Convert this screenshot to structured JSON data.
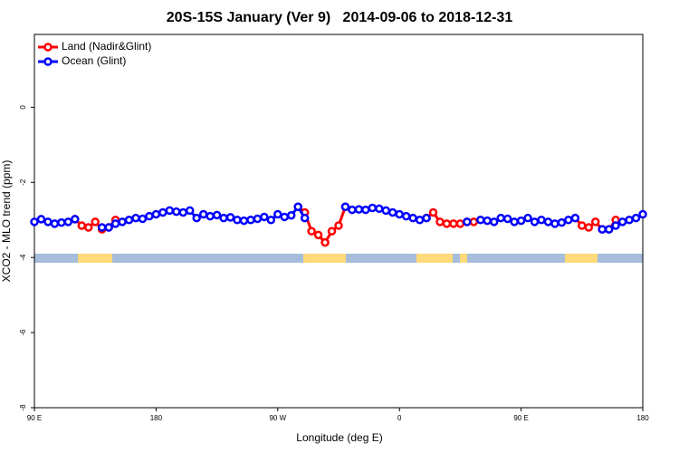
{
  "chart_data": {
    "type": "line",
    "title": "20S-15S January (Ver 9)   2014-09-06 to 2018-12-31",
    "xlabel": "Longitude (deg E)",
    "ylabel": "XCO2 - MLO trend (ppm)",
    "xlim": [
      90,
      540
    ],
    "ylim": [
      -8,
      1.94
    ],
    "xticks": [
      {
        "value": 90,
        "label": "90 E"
      },
      180,
      {
        "value": 270,
        "label": "90 W"
      },
      {
        "value": 360,
        "label": "0"
      },
      {
        "value": 450,
        "label": "90 E"
      },
      {
        "value": 540,
        "label": "180"
      }
    ],
    "yticks": [
      0,
      -2,
      -4,
      -6,
      -8
    ],
    "legend": "upper left",
    "x": [
      90,
      95,
      100,
      105,
      110,
      115,
      120,
      125,
      130,
      135,
      140,
      145,
      150,
      155,
      160,
      165,
      170,
      175,
      180,
      185,
      190,
      195,
      200,
      205,
      210,
      215,
      220,
      225,
      230,
      235,
      240,
      245,
      250,
      255,
      260,
      265,
      270,
      275,
      280,
      285,
      290,
      295,
      300,
      305,
      310,
      315,
      320,
      325,
      330,
      335,
      340,
      345,
      350,
      355,
      360,
      365,
      370,
      375,
      380,
      385,
      390,
      395,
      400,
      405,
      410,
      415,
      420,
      425,
      430,
      435,
      440,
      445,
      450,
      455,
      460,
      465,
      470,
      475,
      480,
      485,
      490,
      495,
      500,
      505,
      510,
      515,
      520,
      525,
      530,
      535,
      540
    ],
    "series": [
      {
        "name": "Land (Nadir&Glint)",
        "color": "#ff0000",
        "values": [
          null,
          null,
          null,
          null,
          null,
          null,
          -2.98,
          -3.15,
          -3.2,
          -3.05,
          -3.25,
          -3.2,
          -3.0,
          null,
          null,
          null,
          null,
          null,
          null,
          null,
          null,
          null,
          null,
          null,
          null,
          null,
          null,
          null,
          null,
          null,
          null,
          null,
          null,
          null,
          null,
          null,
          null,
          null,
          null,
          -2.65,
          -2.8,
          -3.3,
          -3.4,
          -3.6,
          -3.3,
          -3.15,
          -2.65,
          null,
          null,
          null,
          null,
          null,
          null,
          null,
          null,
          null,
          null,
          null,
          -2.95,
          -2.8,
          -3.05,
          -3.1,
          -3.1,
          -3.1,
          -3.05,
          -3.05,
          null,
          null,
          null,
          null,
          null,
          null,
          null,
          null,
          null,
          null,
          null,
          null,
          null,
          null,
          -2.95,
          -3.15,
          -3.2,
          -3.05,
          -3.25,
          -3.25,
          -3.0,
          null,
          null,
          null,
          null
        ]
      },
      {
        "name": "Ocean (Glint)",
        "color": "#0000ff",
        "values": [
          -3.05,
          -2.98,
          -3.05,
          -3.1,
          -3.07,
          -3.05,
          -2.98,
          null,
          null,
          null,
          -3.2,
          -3.2,
          -3.1,
          -3.05,
          -3.0,
          -2.95,
          -2.97,
          -2.9,
          -2.85,
          -2.8,
          -2.75,
          -2.78,
          -2.8,
          -2.75,
          -2.95,
          -2.85,
          -2.9,
          -2.87,
          -2.95,
          -2.93,
          -3.0,
          -3.02,
          -3.0,
          -2.97,
          -2.92,
          -3.0,
          -2.85,
          -2.92,
          -2.88,
          -2.65,
          -2.95,
          null,
          null,
          null,
          null,
          null,
          -2.65,
          -2.73,
          -2.72,
          -2.73,
          -2.68,
          -2.7,
          -2.75,
          -2.8,
          -2.85,
          -2.9,
          -2.95,
          -3.0,
          -2.95,
          null,
          null,
          null,
          null,
          null,
          -3.05,
          null,
          -3.0,
          -3.02,
          -3.05,
          -2.95,
          -2.97,
          -3.05,
          -3.02,
          -2.95,
          -3.05,
          -3.0,
          -3.05,
          -3.1,
          -3.07,
          -3.0,
          -2.95,
          null,
          null,
          null,
          -3.25,
          -3.25,
          -3.15,
          -3.05,
          -3.0,
          -2.95,
          -2.85
        ]
      }
    ]
  }
}
